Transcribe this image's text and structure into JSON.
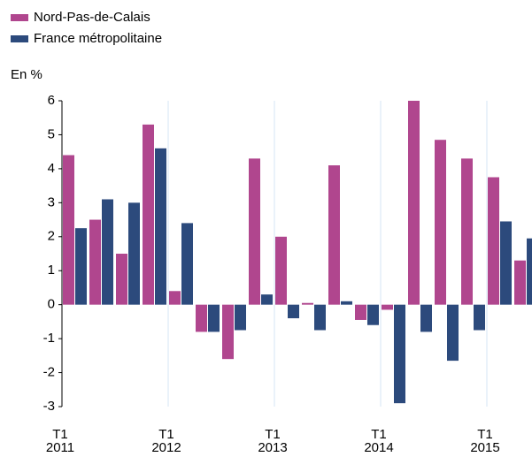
{
  "chart_data": {
    "type": "bar",
    "y_label": "En %",
    "categories": [
      "T1\n2011",
      null,
      null,
      null,
      "T1\n2012",
      null,
      null,
      null,
      "T1\n2013",
      null,
      null,
      null,
      "T1\n2014",
      null,
      null,
      null,
      "T1\n2015",
      null
    ],
    "series": [
      {
        "name": "Nord-Pas-de-Calais",
        "color": "#b0468e",
        "values": [
          4.4,
          2.5,
          1.5,
          5.3,
          0.4,
          -0.8,
          -1.6,
          4.3,
          2.0,
          0.05,
          4.1,
          -0.45,
          -0.15,
          6.0,
          4.85,
          4.3,
          3.75,
          1.3
        ]
      },
      {
        "name": "France métropolitaine",
        "color": "#2c4a7c",
        "values": [
          2.25,
          3.1,
          3.0,
          4.6,
          2.4,
          -0.8,
          -0.75,
          0.3,
          -0.4,
          -0.75,
          0.1,
          -0.6,
          -2.9,
          -0.8,
          -1.65,
          -0.75,
          2.45,
          1.95
        ]
      }
    ],
    "ylim": [
      -3,
      6
    ],
    "yticks": [
      -3,
      -2,
      -1,
      0,
      1,
      2,
      3,
      4,
      5,
      6
    ],
    "grid": true
  }
}
